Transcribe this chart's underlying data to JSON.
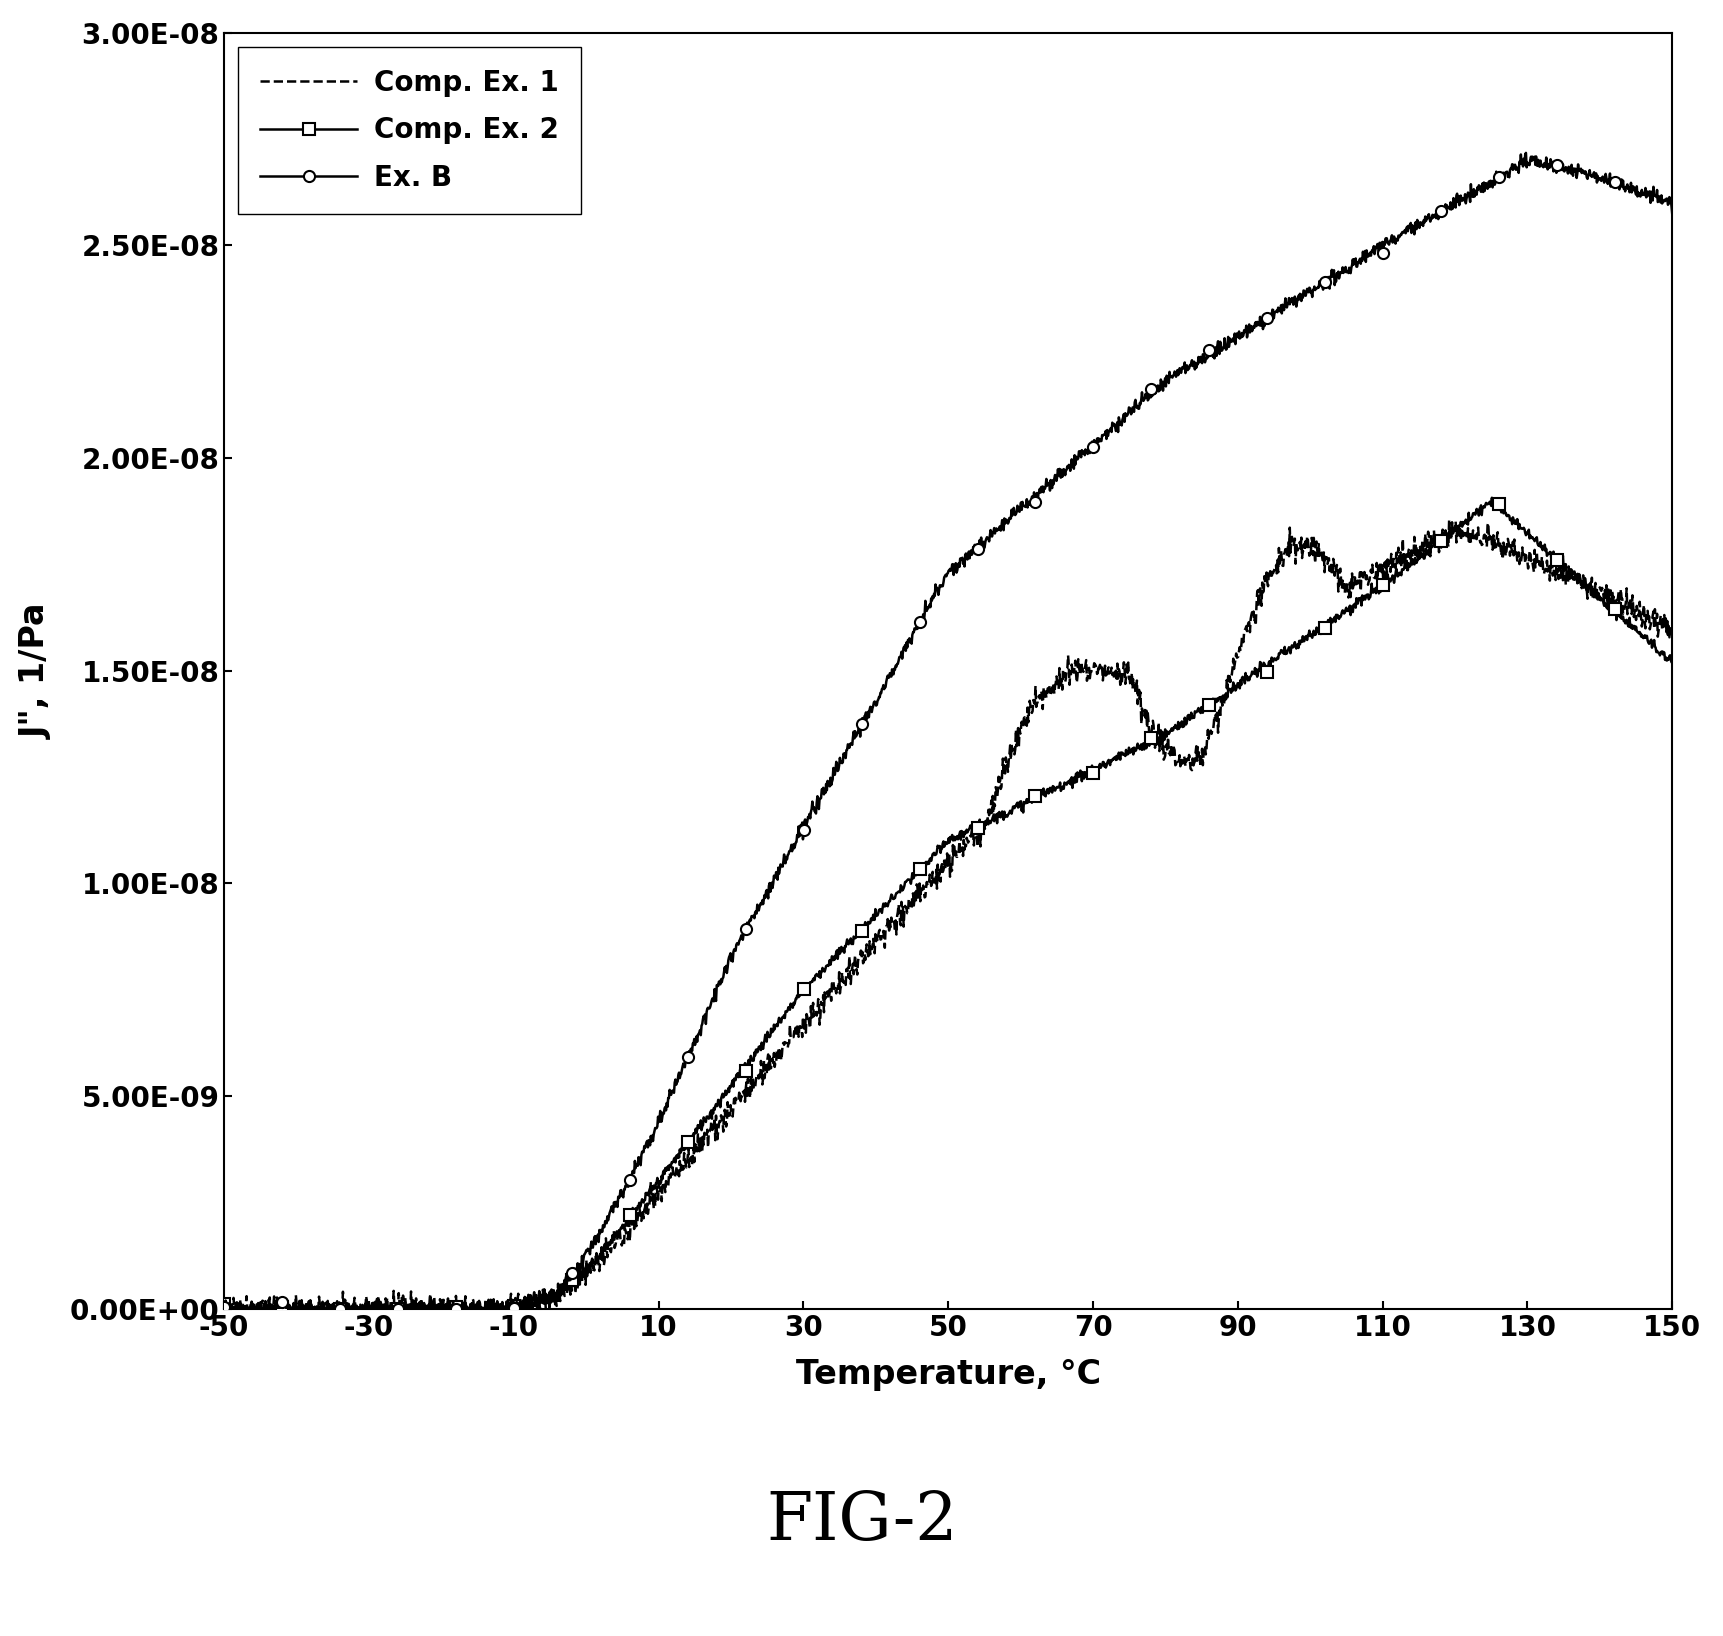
{
  "title": "FIG-2",
  "xlabel": "Temperature, °C",
  "ylabel": "J\", 1/Pa",
  "xlim": [
    -50,
    150
  ],
  "ylim": [
    0.0,
    3e-08
  ],
  "xticks": [
    -50,
    -30,
    -10,
    10,
    30,
    50,
    70,
    90,
    110,
    130,
    150
  ],
  "yticks": [
    0.0,
    5e-09,
    1e-08,
    1.5e-08,
    2e-08,
    2.5e-08,
    3e-08
  ],
  "ytick_labels": [
    "0.00E+00",
    "5.00E-09",
    "1.00E-08",
    "1.50E-08",
    "2.00E-08",
    "2.50E-08",
    "3.00E-08"
  ],
  "legend_labels": [
    "Comp. Ex. 1",
    "Comp. Ex. 2",
    "Ex. B"
  ],
  "background_color": "#ffffff",
  "line_color": "#000000",
  "title_fontsize": 48,
  "axis_label_fontsize": 22,
  "tick_fontsize": 20,
  "legend_fontsize": 20
}
